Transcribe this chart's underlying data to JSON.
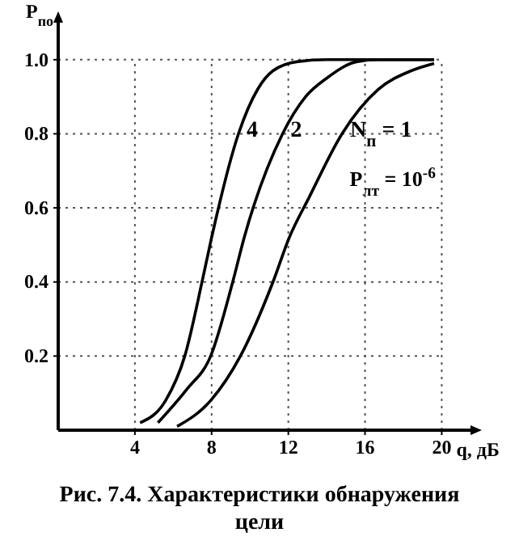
{
  "chart_data": {
    "type": "line",
    "title": "Рис. 7.4. Характеристики обнаружения цели",
    "xlabel": "q, дБ",
    "ylabel": "P$_{по}$",
    "xlim": [
      0,
      21.5
    ],
    "ylim": [
      0,
      1.1
    ],
    "xticks": [
      4,
      8,
      12,
      16,
      20
    ],
    "yticks": [
      0.2,
      0.4,
      0.6,
      0.8,
      {
        "value": 1,
        "label": "1.0"
      }
    ],
    "grid": true,
    "line_style": "solid",
    "marker": "none",
    "series": [
      {
        "name": "4",
        "color": "#000000",
        "x": [
          4.27,
          5.6,
          6.6,
          7.5,
          8.0,
          9.4,
          10.4,
          11.2,
          12.5,
          14,
          19.6
        ],
        "values": [
          0.02,
          0.08,
          0.2,
          0.4,
          0.52,
          0.8,
          0.92,
          0.97,
          0.995,
          1.0,
          1.0
        ]
      },
      {
        "name": "2",
        "color": "#000000",
        "x": [
          5.2,
          6.7,
          7.95,
          9.1,
          9.7,
          11.7,
          12.9,
          14,
          15.6,
          16.7,
          19.6
        ],
        "values": [
          0.02,
          0.11,
          0.2,
          0.4,
          0.52,
          0.8,
          0.9,
          0.95,
          0.995,
          1.0,
          1.0
        ]
      },
      {
        "name": "N$_{п}$ = 1",
        "color": "#000000",
        "x": [
          6.2,
          7.95,
          9.5,
          11.2,
          12.05,
          13.1,
          14.8,
          16.7,
          18.4,
          19.6
        ],
        "values": [
          0.01,
          0.08,
          0.2,
          0.4,
          0.52,
          0.63,
          0.8,
          0.92,
          0.97,
          0.99
        ]
      }
    ],
    "annotations": [
      "P$_{лт}$ = 10$^{-6}$"
    ]
  }
}
